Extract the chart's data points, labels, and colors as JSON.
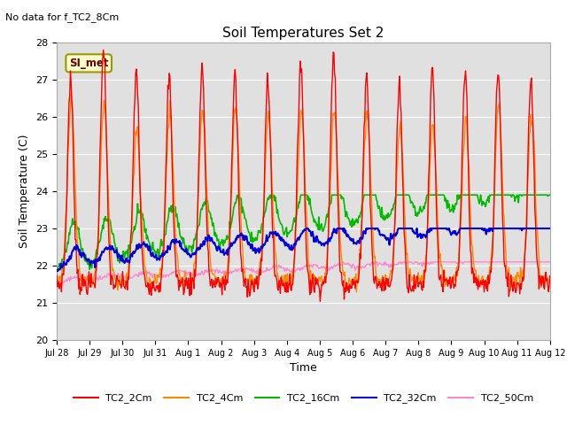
{
  "title": "Soil Temperatures Set 2",
  "subtitle": "No data for f_TC2_8Cm",
  "xlabel": "Time",
  "ylabel": "Soil Temperature (C)",
  "ylim": [
    20.0,
    28.0
  ],
  "yticks": [
    20.0,
    21.0,
    22.0,
    23.0,
    24.0,
    25.0,
    26.0,
    27.0,
    28.0
  ],
  "bg_color": "#e0e0e0",
  "legend_box_color": "#ffffcc",
  "legend_box_edge": "#999900",
  "legend_box_text": "SI_met",
  "series": {
    "TC2_2Cm": {
      "color": "#ff0000",
      "lw": 1.0
    },
    "TC2_4Cm": {
      "color": "#ff8800",
      "lw": 1.0
    },
    "TC2_16Cm": {
      "color": "#00bb00",
      "lw": 1.2
    },
    "TC2_32Cm": {
      "color": "#0000dd",
      "lw": 1.5
    },
    "TC2_50Cm": {
      "color": "#ff88cc",
      "lw": 1.0
    }
  },
  "x_tick_labels": [
    "Jul 28",
    "Jul 29",
    "Jul 30",
    "Jul 31",
    "Aug 1",
    "Aug 2",
    "Aug 3",
    "Aug 4",
    "Aug 5",
    "Aug 6",
    "Aug 7",
    "Aug 8",
    "Aug 9",
    "Aug 10",
    "Aug 11",
    "Aug 12"
  ],
  "n_points": 720,
  "figsize": [
    6.4,
    4.8
  ],
  "dpi": 100
}
